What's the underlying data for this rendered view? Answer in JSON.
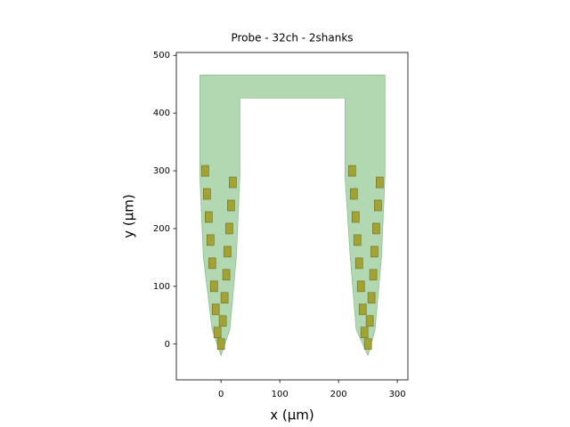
{
  "chart_data": {
    "type": "probe",
    "title": "Probe - 32ch - 2shanks",
    "x_label": "x (μm)",
    "y_label": "y (μm)",
    "xlim": [
      -76,
      318
    ],
    "ylim": [
      -62,
      505
    ],
    "xticks": [
      0,
      100,
      200,
      300
    ],
    "yticks": [
      0,
      100,
      200,
      300,
      400,
      500
    ],
    "contour": {
      "color": "#b2d8b2",
      "x": [
        0,
        -15,
        -30,
        -36,
        -36,
        279,
        279,
        273,
        262,
        250,
        230,
        220,
        211,
        211,
        32,
        32,
        26,
        15
      ],
      "y": [
        -20,
        25,
        150,
        290,
        466,
        466,
        290,
        150,
        25,
        -20,
        25,
        150,
        290,
        426,
        426,
        290,
        150,
        25
      ]
    },
    "contacts": {
      "color": "#a3a333",
      "x": [
        -6,
        -9,
        -12,
        -15,
        -18,
        -21,
        -24,
        -27,
        0,
        3,
        6,
        9,
        11,
        14,
        17,
        20,
        244,
        241,
        238,
        235,
        232,
        229,
        226,
        223,
        250,
        253,
        256,
        259,
        261,
        264,
        267,
        270
      ],
      "y": [
        20,
        60,
        100,
        140,
        180,
        220,
        260,
        300,
        0,
        40,
        80,
        120,
        160,
        200,
        240,
        280,
        20,
        60,
        100,
        140,
        180,
        220,
        260,
        300,
        0,
        40,
        80,
        120,
        160,
        200,
        240,
        280
      ]
    }
  }
}
